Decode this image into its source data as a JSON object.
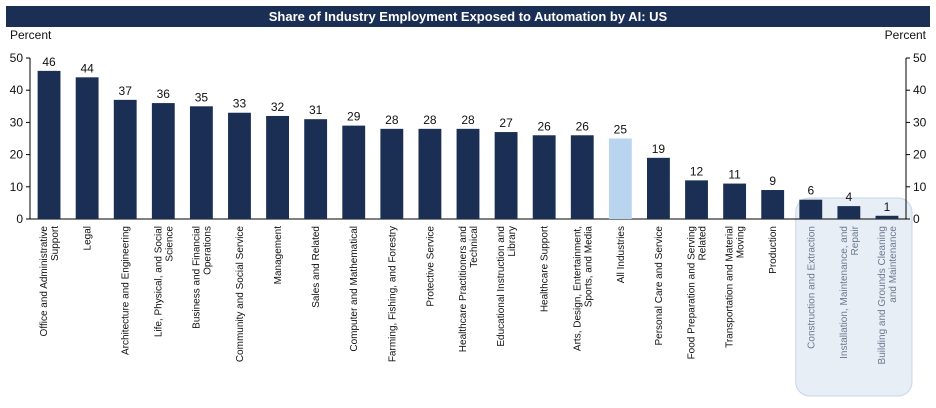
{
  "chart_data": {
    "type": "bar",
    "title": "Share of Industry Employment Exposed to Automation by AI: US",
    "ylabel_left": "Percent",
    "ylabel_right": "Percent",
    "ylim": [
      0,
      50
    ],
    "yticks": [
      0,
      10,
      20,
      30,
      40,
      50
    ],
    "grid": false,
    "categories": [
      "Office and Administrative Support",
      "Legal",
      "Architecture and Engineering",
      "Life, Physical, and Social Science",
      "Business and Financial Operations",
      "Community and Social Service",
      "Management",
      "Sales and Related",
      "Computer and Mathematical",
      "Farming, Fishing, and Forestry",
      "Protective Service",
      "Healthcare Practitioners and Technical",
      "Educational Instruction and Library",
      "Healthcare Support",
      "Arts, Design, Entertainment, Sports, and Media",
      "All Industries",
      "Personal Care and Service",
      "Food Preparation and Serving Related",
      "Transportation and Material Moving",
      "Production",
      "Construction and Extraction",
      "Installation, Maintenance, and Repair",
      "Building and Grounds Cleaning and Maintenance"
    ],
    "label_lines": [
      [
        "Office and Administrative",
        "Support"
      ],
      [
        "Legal"
      ],
      [
        "Architecture and Engineering"
      ],
      [
        "Life, Physical, and Social",
        "Science"
      ],
      [
        "Business and Financial",
        "Operations"
      ],
      [
        "Community and Social Service"
      ],
      [
        "Management"
      ],
      [
        "Sales and Related"
      ],
      [
        "Computer and Mathematical"
      ],
      [
        "Farming, Fishing, and Forestry"
      ],
      [
        "Protective Service"
      ],
      [
        "Healthcare Practitioners and",
        "Technical"
      ],
      [
        "Educational Instruction and",
        "Library"
      ],
      [
        "Healthcare Support"
      ],
      [
        "Arts, Design, Entertainment,",
        "Sports, and Media"
      ],
      [
        "All Industries"
      ],
      [
        "Personal Care and Service"
      ],
      [
        "Food Preparation and Serving",
        "Related"
      ],
      [
        "Transportation and Material",
        "Moving"
      ],
      [
        "Production"
      ],
      [
        "Construction and Extraction"
      ],
      [
        "Installation, Maintenance, and",
        "Repair"
      ],
      [
        "Building and Grounds Cleaning",
        "and Maintenance"
      ]
    ],
    "values": [
      46,
      44,
      37,
      36,
      35,
      33,
      32,
      31,
      29,
      28,
      28,
      28,
      27,
      26,
      26,
      25,
      19,
      12,
      11,
      9,
      6,
      4,
      1
    ],
    "highlight_category": "All Industries",
    "muted_categories": [
      "Construction and Extraction",
      "Installation, Maintenance, and Repair",
      "Building and Grounds Cleaning and Maintenance"
    ],
    "colors": {
      "bar": "#1b2f55",
      "highlight": "#b8d4ee",
      "title_bg": "#1b2f55",
      "muted_box": "#e8eef6",
      "muted_box_border": "#c8d6e8",
      "muted_label": "#6b7a90"
    }
  }
}
